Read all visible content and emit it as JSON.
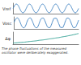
{
  "chart_data": [
    {
      "type": "line",
      "ylabel": "Vref",
      "color": "#3a7fc0",
      "tick_labels": false,
      "grid": false,
      "xlim": [
        0,
        10
      ],
      "ylim": [
        -1.2,
        1.2
      ],
      "x": [
        0,
        0.25,
        0.5,
        0.75,
        1,
        1.25,
        1.5,
        1.75,
        2,
        2.25,
        2.5,
        2.75,
        3,
        3.25,
        3.5,
        3.75,
        4,
        4.25,
        4.5,
        4.75,
        5,
        5.25,
        5.5,
        5.75,
        6,
        6.25,
        6.5,
        6.75,
        7,
        7.25,
        7.5,
        7.75,
        8,
        8.25,
        8.5,
        8.75,
        9,
        9.25,
        9.5,
        9.75,
        10
      ],
      "values": [
        0,
        0.71,
        1,
        0.71,
        0,
        -0.71,
        -1,
        -0.71,
        0,
        0.71,
        1,
        0.71,
        0,
        -0.71,
        -1,
        -0.71,
        0,
        0.71,
        1,
        0.71,
        0,
        -0.71,
        -1,
        -0.71,
        0,
        0.71,
        1,
        0.71,
        0,
        -0.71,
        -1,
        -0.71,
        0,
        0.71,
        1,
        0.71,
        0,
        -0.71,
        -1,
        -0.71,
        0
      ]
    },
    {
      "type": "line",
      "ylabel": "Vosc",
      "color": "#3a7fc0",
      "tick_labels": false,
      "grid": false,
      "xlim": [
        0,
        10
      ],
      "ylim": [
        -1.2,
        1.2
      ],
      "x": [
        0,
        0.25,
        0.5,
        0.75,
        1,
        1.25,
        1.5,
        1.75,
        2,
        2.25,
        2.5,
        2.75,
        3,
        3.25,
        3.5,
        3.75,
        4,
        4.25,
        4.5,
        4.75,
        5,
        5.25,
        5.5,
        5.75,
        6,
        6.25,
        6.5,
        6.75,
        7,
        7.25,
        7.5,
        7.75,
        8,
        8.25,
        8.5,
        8.75,
        9,
        9.25,
        9.5,
        9.75,
        10
      ],
      "values": [
        0.1,
        0.77,
        0.99,
        0.63,
        -0.1,
        -0.77,
        -0.99,
        -0.63,
        0.2,
        0.83,
        0.98,
        0.55,
        -0.2,
        -0.83,
        -0.98,
        -0.55,
        0.3,
        0.88,
        0.95,
        0.47,
        -0.3,
        -0.88,
        -0.95,
        -0.47,
        0.39,
        0.92,
        0.92,
        0.39,
        -0.39,
        -0.92,
        -0.92,
        -0.39,
        0.47,
        0.95,
        0.88,
        0.3,
        -0.47,
        -0.95,
        -0.88,
        -0.3,
        0.55
      ]
    },
    {
      "type": "line",
      "ylabel": "Δφ",
      "color": "#2a9d8f",
      "tick_labels": false,
      "grid": false,
      "xlim": [
        0,
        10
      ],
      "ylim": [
        -0.1,
        1
      ],
      "x": [
        0,
        0.5,
        1,
        1.5,
        2,
        2.5,
        3,
        3.5,
        4,
        4.5,
        5,
        5.5,
        6,
        6.5,
        7,
        7.5,
        8,
        8.5,
        9,
        9.5,
        10
      ],
      "values": [
        0,
        0.02,
        0.05,
        0.07,
        0.1,
        0.14,
        0.17,
        0.2,
        0.25,
        0.28,
        0.32,
        0.37,
        0.41,
        0.46,
        0.5,
        0.56,
        0.61,
        0.67,
        0.73,
        0.8,
        0.87
      ],
      "annotation": "The phase fluctuations of the measured oscillator were deliberately exaggerated."
    }
  ]
}
